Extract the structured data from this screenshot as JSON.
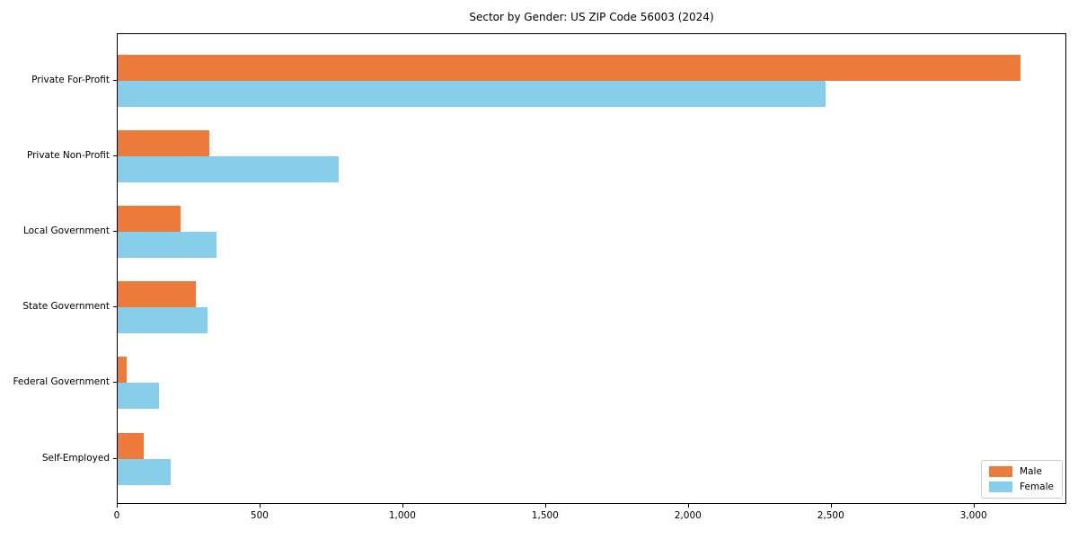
{
  "chart_data": {
    "type": "bar",
    "orientation": "horizontal",
    "title": "Sector by Gender: US ZIP Code 56003 (2024)",
    "categories": [
      "Private For-Profit",
      "Private Non-Profit",
      "Local Government",
      "State Government",
      "Federal Government",
      "Self-Employed"
    ],
    "series": [
      {
        "name": "Male",
        "color": "#EC7A3B",
        "values": [
          3160,
          320,
          220,
          275,
          30,
          90
        ]
      },
      {
        "name": "Female",
        "color": "#87CEEB",
        "values": [
          2480,
          775,
          345,
          315,
          145,
          185
        ]
      }
    ],
    "xlabel": "",
    "ylabel": "",
    "xlim": [
      0,
      3325
    ],
    "xticks": [
      0,
      500,
      1000,
      1500,
      2000,
      2500,
      3000
    ],
    "xtick_labels": [
      "0",
      "500",
      "1,000",
      "1,500",
      "2,000",
      "2,500",
      "3,000"
    ],
    "grid": false,
    "legend_position": "lower right",
    "background_color": "#ffffff",
    "spine_color": "#000000"
  }
}
